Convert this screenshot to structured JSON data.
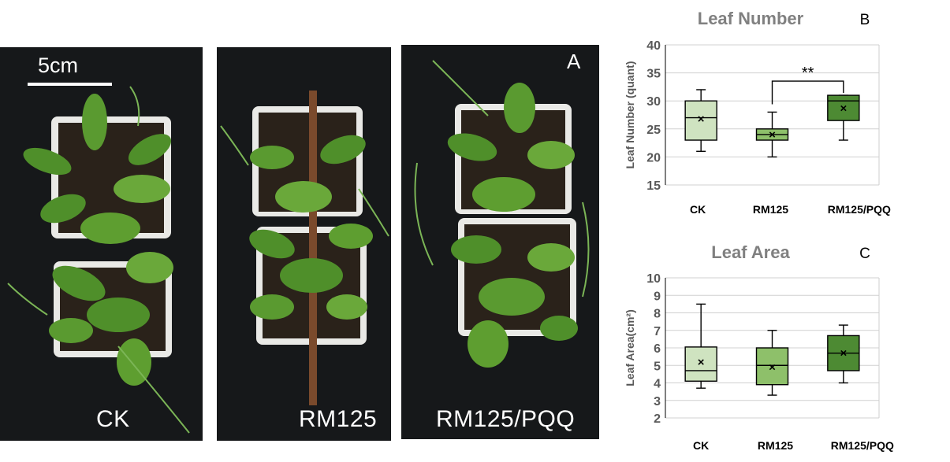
{
  "photos": [
    {
      "label": "CK"
    },
    {
      "label": "RM125"
    },
    {
      "label": "RM125/PQQ",
      "panel": "A"
    }
  ],
  "scale_bar": {
    "label": "5cm"
  },
  "colors": {
    "CK": "#cfe3c0",
    "RM125": "#8ec06a",
    "RM125/PQQ": "#4d8a33",
    "title": "#808080",
    "axis_label": "#595959"
  },
  "chart_data": [
    {
      "type": "boxplot",
      "title": "Leaf Number",
      "panel": "B",
      "ylabel": "Leaf Number (quant)",
      "xlabel": "",
      "ylim": [
        15,
        40
      ],
      "yticks": [
        15,
        20,
        25,
        30,
        35,
        40
      ],
      "grid": true,
      "categories": [
        "CK",
        "RM125",
        "RM125/PQQ"
      ],
      "boxes": [
        {
          "min": 21,
          "q1": 23,
          "median": 27,
          "q3": 30,
          "max": 32,
          "mean": 26.8
        },
        {
          "min": 20,
          "q1": 23,
          "median": 24,
          "q3": 25,
          "max": 28,
          "mean": 24
        },
        {
          "min": 23,
          "q1": 26.5,
          "median": 30,
          "q3": 31,
          "max": 31,
          "mean": 28.7
        }
      ],
      "annotations": [
        {
          "text": "**",
          "between": [
            "RM125",
            "RM125/PQQ"
          ]
        }
      ]
    },
    {
      "type": "boxplot",
      "title": "Leaf Area",
      "panel": "C",
      "ylabel": "Leaf Area(cm²)",
      "xlabel": "",
      "ylim": [
        2,
        10
      ],
      "yticks": [
        2,
        3,
        4,
        5,
        6,
        7,
        8,
        9,
        10
      ],
      "grid": true,
      "categories": [
        "CK",
        "RM125",
        "RM125/PQQ"
      ],
      "boxes": [
        {
          "min": 3.7,
          "q1": 4.1,
          "median": 4.7,
          "q3": 6.05,
          "max": 8.5,
          "mean": 5.2
        },
        {
          "min": 3.3,
          "q1": 3.9,
          "median": 5.0,
          "q3": 6.0,
          "max": 7.0,
          "mean": 4.9
        },
        {
          "min": 4.0,
          "q1": 4.7,
          "median": 5.7,
          "q3": 6.7,
          "max": 7.3,
          "mean": 5.7
        }
      ],
      "annotations": []
    }
  ]
}
